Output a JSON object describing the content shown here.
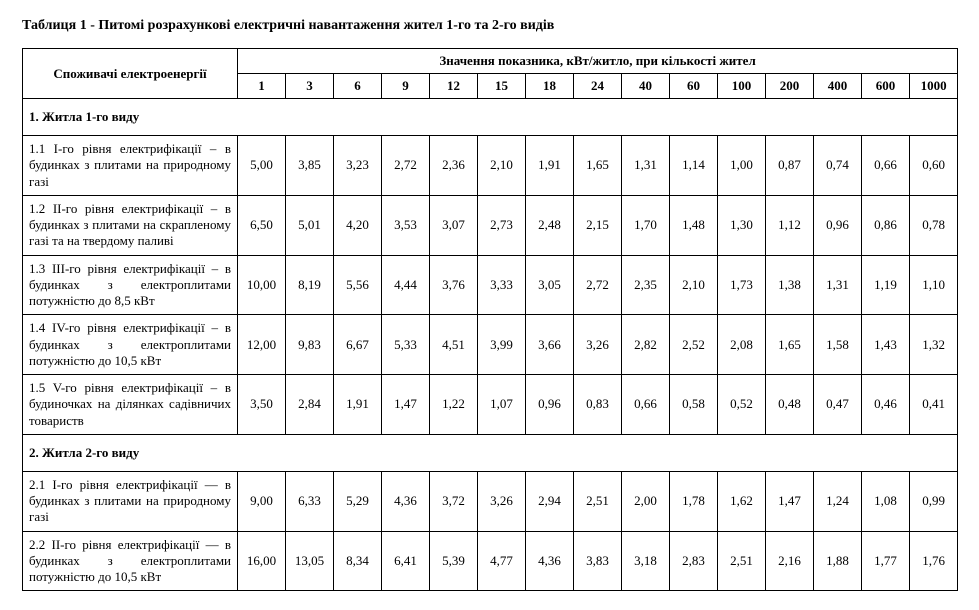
{
  "title": "Таблиця  1   - Питомі розрахункові електричні навантаження жител 1-го та 2-го видів",
  "header": {
    "consumers": "Споживачі електроенергії",
    "values_header": "Значення показника, кВт/житло, при кількості жител",
    "columns": [
      "1",
      "3",
      "6",
      "9",
      "12",
      "15",
      "18",
      "24",
      "40",
      "60",
      "100",
      "200",
      "400",
      "600",
      "1000"
    ]
  },
  "section1": {
    "title": "1. Житла 1-го виду",
    "rows": [
      {
        "label": "1.1 І-го рівня електрифікації – в будинках з плитами на природному газі",
        "values": [
          "5,00",
          "3,85",
          "3,23",
          "2,72",
          "2,36",
          "2,10",
          "1,91",
          "1,65",
          "1,31",
          "1,14",
          "1,00",
          "0,87",
          "0,74",
          "0,66",
          "0,60"
        ]
      },
      {
        "label": "1.2 ІІ-го рівня електрифікації – в будинках з плитами на скрапленому газі та на твердому паливі",
        "values": [
          "6,50",
          "5,01",
          "4,20",
          "3,53",
          "3,07",
          "2,73",
          "2,48",
          "2,15",
          "1,70",
          "1,48",
          "1,30",
          "1,12",
          "0,96",
          "0,86",
          "0,78"
        ]
      },
      {
        "label": "1.3 ІІІ-го рівня електрифікації – в будинках з електроплитами потужністю до 8,5 кВт",
        "values": [
          "10,00",
          "8,19",
          "5,56",
          "4,44",
          "3,76",
          "3,33",
          "3,05",
          "2,72",
          "2,35",
          "2,10",
          "1,73",
          "1,38",
          "1,31",
          "1,19",
          "1,10"
        ]
      },
      {
        "label": "1.4 IV-го рівня електрифікації – в будинках з електроплитами потужністю до 10,5 кВт",
        "values": [
          "12,00",
          "9,83",
          "6,67",
          "5,33",
          "4,51",
          "3,99",
          "3,66",
          "3,26",
          "2,82",
          "2,52",
          "2,08",
          "1,65",
          "1,58",
          "1,43",
          "1,32"
        ]
      },
      {
        "label": "1.5 V-го рівня електрифікації – в будиночках на ділянках садівничих товариств",
        "values": [
          "3,50",
          "2,84",
          "1,91",
          "1,47",
          "1,22",
          "1,07",
          "0,96",
          "0,83",
          "0,66",
          "0,58",
          "0,52",
          "0,48",
          "0,47",
          "0,46",
          "0,41"
        ]
      }
    ]
  },
  "section2": {
    "title": "2. Житла 2-го виду",
    "rows": [
      {
        "label": "2.1 І-го рівня електрифікації — в будинках з плитами на природному газі",
        "values": [
          "9,00",
          "6,33",
          "5,29",
          "4,36",
          "3,72",
          "3,26",
          "2,94",
          "2,51",
          "2,00",
          "1,78",
          "1,62",
          "1,47",
          "1,24",
          "1,08",
          "0,99"
        ]
      },
      {
        "label": "2.2 ІІ-го рівня електрифікації — в будинках з електроплитами потужністю до 10,5 кВт",
        "values": [
          "16,00",
          "13,05",
          "8,34",
          "6,41",
          "5,39",
          "4,77",
          "4,36",
          "3,83",
          "3,18",
          "2,83",
          "2,51",
          "2,16",
          "1,88",
          "1,77",
          "1,76"
        ]
      }
    ]
  }
}
